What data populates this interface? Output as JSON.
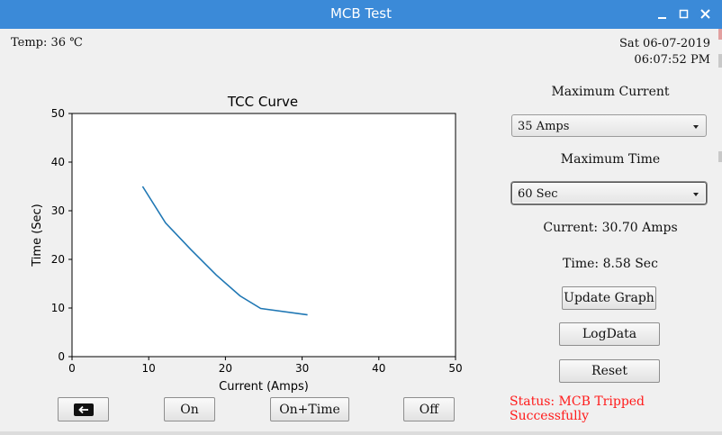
{
  "window": {
    "title": "MCB Test",
    "controls": [
      "minimize-icon",
      "maximize-icon",
      "close-icon"
    ]
  },
  "header": {
    "temp": "Temp: 36 ℃",
    "date": "Sat 06-07-2019",
    "time": "06:07:52 PM"
  },
  "controls": {
    "max_current_label": "Maximum Current",
    "max_current_value": "35 Amps",
    "max_time_label": "Maximum Time",
    "max_time_value": "60 Sec",
    "current_readout": "Current: 30.70 Amps",
    "time_readout": "Time: 8.58 Sec",
    "update_graph": "Update Graph",
    "log_data": "LogData",
    "reset": "Reset",
    "status": "Status: MCB Tripped Successfully"
  },
  "bottom_buttons": {
    "back_icon": "back-arrow-icon",
    "on": "On",
    "on_time": "On+Time",
    "off": "Off"
  },
  "colors": {
    "titlebar": "#3b8ad8",
    "line": "#1f77b4",
    "status": "#ff1a1a"
  },
  "chart_data": {
    "type": "line",
    "title": "TCC Curve",
    "xlabel": "Current (Amps)",
    "ylabel": "Time (Sec)",
    "xlim": [
      0,
      50
    ],
    "ylim": [
      0,
      50
    ],
    "xticks": [
      "0",
      "10",
      "20",
      "30",
      "40",
      "50"
    ],
    "yticks": [
      "0",
      "10",
      "20",
      "30",
      "40",
      "50"
    ],
    "grid": false,
    "series": [
      {
        "x": [
          9.2,
          12.2,
          15.5,
          18.8,
          21.9,
          24.6,
          30.7
        ],
        "y": [
          35.0,
          27.5,
          22.0,
          16.8,
          12.5,
          9.9,
          8.6
        ]
      }
    ]
  }
}
